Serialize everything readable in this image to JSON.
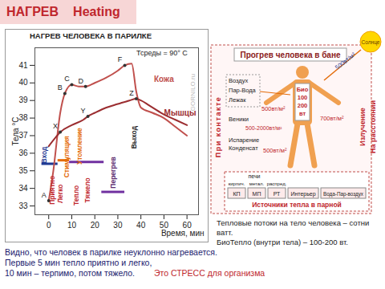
{
  "header": {
    "title": "НАГРЕВ",
    "subtitle": "Heating"
  },
  "chart_data": {
    "type": "line",
    "title": "НАГРЕВ ЧЕЛОВЕКА В ПАРИЛКЕ",
    "x_label": "Время, мин",
    "y_label": "Тела °С",
    "xlim": [
      -6,
      65
    ],
    "ylim": [
      32.5,
      42
    ],
    "xticks": [
      0,
      10,
      20,
      30,
      40,
      50,
      60
    ],
    "yticks": [
      33,
      34,
      35,
      36,
      37,
      38,
      39,
      40,
      41
    ],
    "grid": false,
    "series": [
      {
        "name": "Кожа",
        "color": "#c0504d",
        "label_position": [
          50,
          40.2
        ],
        "x": [
          0,
          2,
          5,
          7,
          10,
          13,
          16,
          20,
          25,
          30,
          33,
          36,
          38,
          40,
          45,
          50,
          55,
          60
        ],
        "values": [
          33.3,
          35,
          38.3,
          39.4,
          39.9,
          39.8,
          39.8,
          40,
          40.3,
          40.7,
          41,
          41.1,
          39.5,
          38.6,
          38.3,
          38,
          37.5,
          37
        ]
      },
      {
        "name": "Мышцы",
        "color": "#9b2d30",
        "label_position": [
          57,
          38.3
        ],
        "x": [
          0,
          3,
          5,
          10,
          15,
          17,
          20,
          25,
          30,
          35,
          38,
          40,
          45,
          50,
          55,
          60
        ],
        "values": [
          36.4,
          36.9,
          37.2,
          37.6,
          37.9,
          38.1,
          38.3,
          38.6,
          38.8,
          39,
          39.1,
          39,
          38.6,
          38.2,
          37.9,
          37.6
        ]
      }
    ],
    "point_labels": [
      {
        "text": "A",
        "x": 0,
        "y": 33.3
      },
      {
        "text": "B",
        "x": 7,
        "y": 39.4
      },
      {
        "text": "C",
        "x": 10,
        "y": 39.9
      },
      {
        "text": "D",
        "x": 16,
        "y": 39.8
      },
      {
        "text": "F",
        "x": 33,
        "y": 41
      },
      {
        "text": "X",
        "x": 5,
        "y": 37.2
      },
      {
        "text": "Y",
        "x": 17,
        "y": 38.1
      },
      {
        "text": "Z",
        "x": 38,
        "y": 39.1
      }
    ],
    "phase_labels": [
      {
        "text": "Вход",
        "x": -2,
        "y": 35.9,
        "color": "#1f3a93"
      },
      {
        "text": "Приятно",
        "x": 1.5,
        "y": 33.9,
        "color": "#c0272d"
      },
      {
        "text": "Легко",
        "x": 5,
        "y": 33.7,
        "color": "#c0272d"
      },
      {
        "text": "Стимуляция",
        "x": 8,
        "y": 35.8,
        "color": "#e46c0a"
      },
      {
        "text": "Утомление",
        "x": 13.5,
        "y": 36.4,
        "color": "#e46c0a"
      },
      {
        "text": "Тепло",
        "x": 12,
        "y": 33.6,
        "color": "#c0272d"
      },
      {
        "text": "Тяжело",
        "x": 17,
        "y": 33.9,
        "color": "#c0272d"
      },
      {
        "text": "Перегрев",
        "x": 28,
        "y": 34.9,
        "color": "#5b2c6f"
      },
      {
        "text": "Выход",
        "x": 37,
        "y": 36.9,
        "color": "#222222"
      }
    ],
    "bands": [
      {
        "x1": -3,
        "x2": 4,
        "y": 35.4,
        "color": "#1f3a93"
      },
      {
        "x1": 4,
        "x2": 9,
        "y": 35.6,
        "color": "#e46c0a"
      },
      {
        "x1": 9,
        "x2": 24,
        "y": 35.5,
        "color": "#7030a0"
      },
      {
        "x1": 23,
        "x2": 33,
        "y": 33.8,
        "color": "#7030a0"
      }
    ],
    "notes": [
      {
        "text": "Тсреды = 90° С",
        "x": 38,
        "y": 41.7
      }
    ]
  },
  "watermark": "GORNILO.ru",
  "diagram": {
    "title": "Прогрев человека в бане",
    "sun": "Солнце",
    "sun_flux": "500вт/м²",
    "radiation": [
      "Излучение",
      "На расстоянии"
    ],
    "contact": "При контакте",
    "bio": [
      "Био",
      "100",
      "200",
      "вт"
    ],
    "contact_sources": [
      "Воздух",
      "Пар-Вода",
      "Лежак"
    ],
    "contact_flux": "500вт/м²",
    "veniki": "Веники",
    "veniki_flux": "500-2000вт/м²",
    "evaporation": [
      "Испарение",
      "Конденсат"
    ],
    "evaporation_flux": "500вт/м²",
    "radiation_flux": "700вт/м²",
    "sources": {
      "stoves": "печи",
      "stove_types": [
        "кирпич.",
        "метал.",
        "распред."
      ],
      "boxes": [
        "КП",
        "МП",
        "РТ",
        "Интерьер",
        "Вода-Пар-воздух"
      ],
      "title": "Источники тепла в парной"
    }
  },
  "notes": [
    "Тепловые потоки на тело человека – сотни ватт.",
    "БиоТепло (внутри тела) – 100-200 вт."
  ],
  "caption": {
    "lines": [
      "Видно, что человек в парилке неуклонно нагревается.",
      "Первые 5 мин тепло приятно и легко,",
      "10 мин – терпимо, потом тяжело."
    ],
    "emphasis": "Это СТРЕСС для организма"
  }
}
